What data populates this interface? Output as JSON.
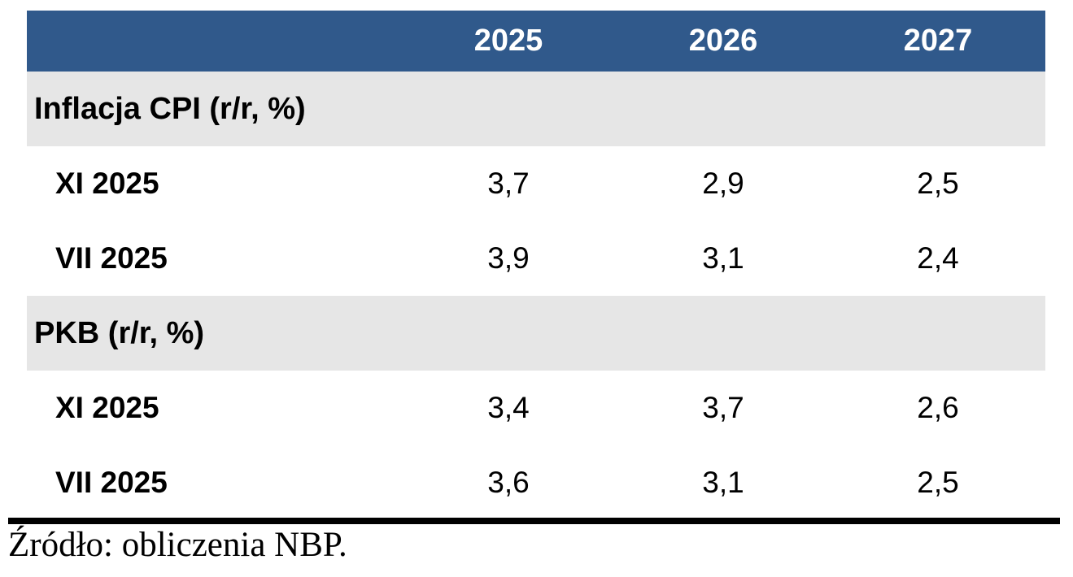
{
  "table": {
    "columns": [
      "2025",
      "2026",
      "2027"
    ],
    "sections": [
      {
        "header": "Inflacja CPI (r/r, %)",
        "rows": [
          {
            "label": "XI 2025",
            "values": [
              "3,7",
              "2,9",
              "2,5"
            ]
          },
          {
            "label": "VII 2025",
            "values": [
              "3,9",
              "3,1",
              "2,4"
            ]
          }
        ]
      },
      {
        "header": "PKB (r/r, %)",
        "rows": [
          {
            "label": "XI 2025",
            "values": [
              "3,4",
              "3,7",
              "2,6"
            ]
          },
          {
            "label": "VII 2025",
            "values": [
              "3,6",
              "3,1",
              "2,5"
            ]
          }
        ]
      }
    ]
  },
  "footer": {
    "source": "Źródło: obliczenia NBP."
  },
  "colors": {
    "header_bg": "#30598B",
    "header_text": "#FFFFFF",
    "section_bg": "#E6E6E6",
    "body_text": "#000000",
    "rule": "#000000"
  },
  "chart_data": {
    "type": "table",
    "title": "",
    "column_headers": [
      "",
      "2025",
      "2026",
      "2027"
    ],
    "rows": [
      {
        "section": "Inflacja CPI (r/r, %)",
        "projection": "XI 2025",
        "values": [
          3.7,
          2.9,
          2.5
        ]
      },
      {
        "section": "Inflacja CPI (r/r, %)",
        "projection": "VII 2025",
        "values": [
          3.9,
          3.1,
          2.4
        ]
      },
      {
        "section": "PKB (r/r, %)",
        "projection": "XI 2025",
        "values": [
          3.4,
          3.7,
          2.6
        ]
      },
      {
        "section": "PKB (r/r, %)",
        "projection": "VII 2025",
        "values": [
          3.6,
          3.1,
          2.5
        ]
      }
    ],
    "source_note": "Źródło: obliczenia NBP."
  }
}
